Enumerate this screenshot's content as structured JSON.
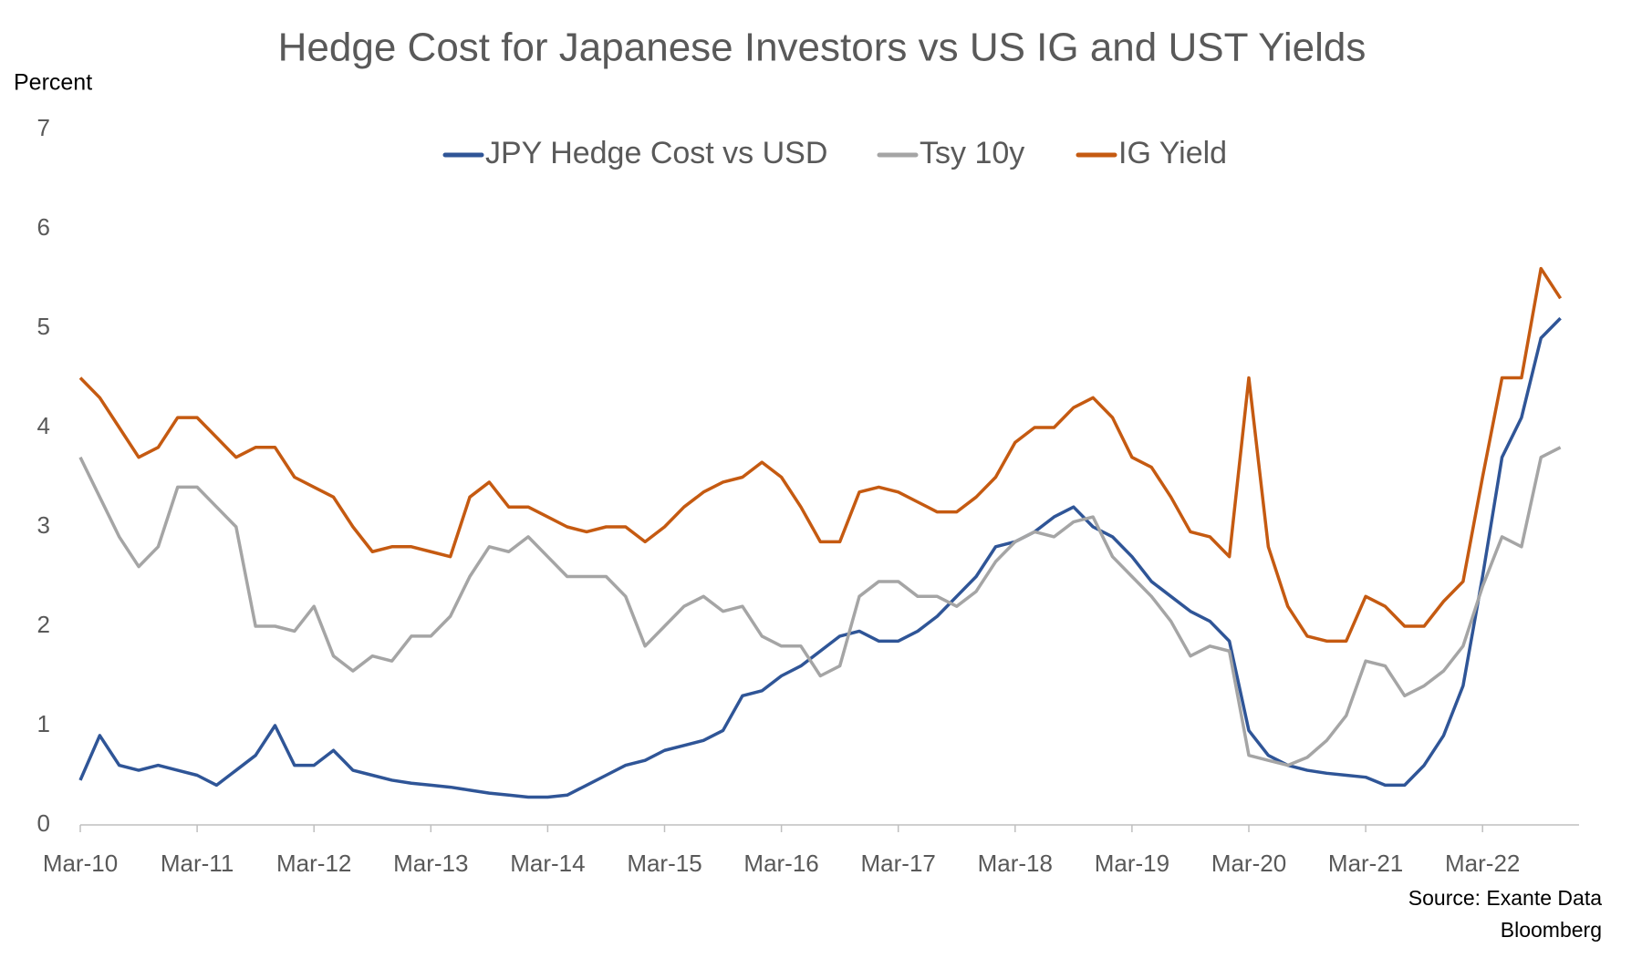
{
  "chart_data": {
    "type": "line",
    "title": "Hedge Cost for Japanese Investors vs US IG and UST Yields",
    "y_label": "Percent",
    "source": [
      "Source:  Exante Data",
      "Bloomberg"
    ],
    "x": [
      "Mar-10",
      "May-10",
      "Jul-10",
      "Sep-10",
      "Nov-10",
      "Jan-11",
      "Mar-11",
      "May-11",
      "Jul-11",
      "Sep-11",
      "Nov-11",
      "Jan-12",
      "Mar-12",
      "May-12",
      "Jul-12",
      "Sep-12",
      "Nov-12",
      "Jan-13",
      "Mar-13",
      "May-13",
      "Jul-13",
      "Sep-13",
      "Nov-13",
      "Jan-14",
      "Mar-14",
      "May-14",
      "Jul-14",
      "Sep-14",
      "Nov-14",
      "Jan-15",
      "Mar-15",
      "May-15",
      "Jul-15",
      "Sep-15",
      "Nov-15",
      "Jan-16",
      "Mar-16",
      "May-16",
      "Jul-16",
      "Sep-16",
      "Nov-16",
      "Jan-17",
      "Mar-17",
      "May-17",
      "Jul-17",
      "Sep-17",
      "Nov-17",
      "Jan-18",
      "Mar-18",
      "May-18",
      "Jul-18",
      "Sep-18",
      "Nov-18",
      "Jan-19",
      "Mar-19",
      "May-19",
      "Jul-19",
      "Sep-19",
      "Nov-19",
      "Jan-20",
      "Mar-20",
      "May-20",
      "Jul-20",
      "Sep-20",
      "Nov-20",
      "Jan-21",
      "Mar-21",
      "May-21",
      "Jul-21",
      "Sep-21",
      "Nov-21",
      "Jan-22",
      "Mar-22",
      "May-22",
      "Jul-22",
      "Sep-22",
      "Nov-22"
    ],
    "xticks": [
      "Mar-10",
      "Mar-11",
      "Mar-12",
      "Mar-13",
      "Mar-14",
      "Mar-15",
      "Mar-16",
      "Mar-17",
      "Mar-18",
      "Mar-19",
      "Mar-20",
      "Mar-21",
      "Mar-22"
    ],
    "ylim": [
      0,
      7
    ],
    "yticks": [
      0,
      1,
      2,
      3,
      4,
      5,
      6,
      7
    ],
    "grid": false,
    "series": [
      {
        "name": "JPY Hedge Cost vs USD",
        "color": "#2f5597",
        "values": [
          0.45,
          0.9,
          0.6,
          0.55,
          0.6,
          0.55,
          0.5,
          0.4,
          0.55,
          0.7,
          1.0,
          0.6,
          0.6,
          0.75,
          0.55,
          0.5,
          0.45,
          0.42,
          0.4,
          0.38,
          0.35,
          0.32,
          0.3,
          0.28,
          0.28,
          0.3,
          0.4,
          0.5,
          0.6,
          0.65,
          0.75,
          0.8,
          0.85,
          0.95,
          1.3,
          1.35,
          1.5,
          1.6,
          1.75,
          1.9,
          1.95,
          1.85,
          1.85,
          1.95,
          2.1,
          2.3,
          2.5,
          2.8,
          2.85,
          2.95,
          3.1,
          3.2,
          3.0,
          2.9,
          2.7,
          2.45,
          2.3,
          2.15,
          2.05,
          1.85,
          0.95,
          0.7,
          0.6,
          0.55,
          0.52,
          0.5,
          0.48,
          0.4,
          0.4,
          0.6,
          0.9,
          1.4,
          2.5,
          3.7,
          4.1,
          4.9,
          5.1
        ]
      },
      {
        "name": "Tsy 10y",
        "color": "#a5a5a5",
        "values": [
          3.7,
          3.3,
          2.9,
          2.6,
          2.8,
          3.4,
          3.4,
          3.2,
          3.0,
          2.0,
          2.0,
          1.95,
          2.2,
          1.7,
          1.55,
          1.7,
          1.65,
          1.9,
          1.9,
          2.1,
          2.5,
          2.8,
          2.75,
          2.9,
          2.7,
          2.5,
          2.5,
          2.5,
          2.3,
          1.8,
          2.0,
          2.2,
          2.3,
          2.15,
          2.2,
          1.9,
          1.8,
          1.8,
          1.5,
          1.6,
          2.3,
          2.45,
          2.45,
          2.3,
          2.3,
          2.2,
          2.35,
          2.65,
          2.85,
          2.95,
          2.9,
          3.05,
          3.1,
          2.7,
          2.5,
          2.3,
          2.05,
          1.7,
          1.8,
          1.75,
          0.7,
          0.65,
          0.6,
          0.68,
          0.85,
          1.1,
          1.65,
          1.6,
          1.3,
          1.4,
          1.55,
          1.8,
          2.4,
          2.9,
          2.8,
          3.7,
          3.8
        ]
      },
      {
        "name": "IG Yield",
        "color": "#c55a11",
        "values": [
          4.5,
          4.3,
          4.0,
          3.7,
          3.8,
          4.1,
          4.1,
          3.9,
          3.7,
          3.8,
          3.8,
          3.5,
          3.4,
          3.3,
          3.0,
          2.75,
          2.8,
          2.8,
          2.75,
          2.7,
          3.3,
          3.45,
          3.2,
          3.2,
          3.1,
          3.0,
          2.95,
          3.0,
          3.0,
          2.85,
          3.0,
          3.2,
          3.35,
          3.45,
          3.5,
          3.65,
          3.5,
          3.2,
          2.85,
          2.85,
          3.35,
          3.4,
          3.35,
          3.25,
          3.15,
          3.15,
          3.3,
          3.5,
          3.85,
          4.0,
          4.0,
          4.2,
          4.3,
          4.1,
          3.7,
          3.6,
          3.3,
          2.95,
          2.9,
          2.7,
          4.5,
          2.8,
          2.2,
          1.9,
          1.85,
          1.85,
          2.3,
          2.2,
          2.0,
          2.0,
          2.25,
          2.45,
          3.5,
          4.5,
          4.5,
          5.6,
          5.3
        ]
      }
    ]
  }
}
